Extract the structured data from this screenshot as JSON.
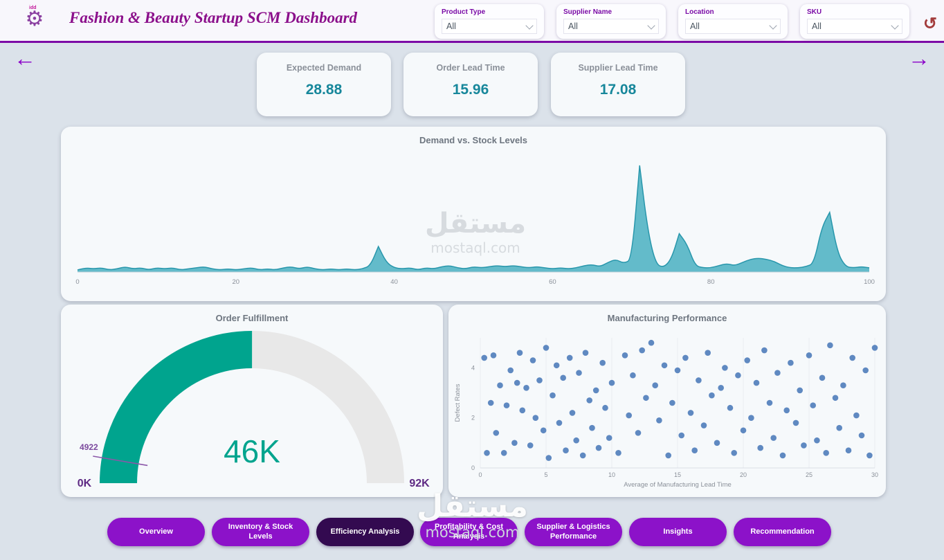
{
  "header": {
    "title": "Fashion & Beauty Startup SCM Dashboard",
    "logo_text": "idd",
    "filters": [
      {
        "label": "Product Type",
        "value": "All"
      },
      {
        "label": "Supplier Name",
        "value": "All"
      },
      {
        "label": "Location",
        "value": "All"
      },
      {
        "label": "SKU",
        "value": "All"
      }
    ]
  },
  "icons": {
    "undo": "↺",
    "prev": "←",
    "next": "→",
    "gear": "⚙"
  },
  "kpis": [
    {
      "label": "Expected Demand",
      "value": "28.88"
    },
    {
      "label": "Order Lead Time",
      "value": "15.96"
    },
    {
      "label": "Supplier Lead Time",
      "value": "17.08"
    }
  ],
  "chart_data": [
    {
      "type": "area",
      "title": "Demand vs. Stock Levels",
      "x_range": [
        0,
        100
      ],
      "y_range": [
        0,
        100
      ],
      "x_ticks": [
        0,
        20,
        40,
        60,
        80,
        100
      ],
      "x_step": 1,
      "values": [
        2,
        4,
        3,
        4,
        2,
        3,
        5,
        3,
        4,
        2,
        4,
        3,
        4,
        2,
        3,
        4,
        5,
        3,
        2,
        3,
        2,
        3,
        4,
        2,
        3,
        2,
        4,
        5,
        3,
        5,
        3,
        2,
        3,
        2,
        3,
        2,
        3,
        6,
        24,
        9,
        4,
        3,
        4,
        2,
        4,
        3,
        5,
        6,
        4,
        3,
        5,
        4,
        5,
        6,
        5,
        6,
        5,
        4,
        5,
        4,
        3,
        4,
        3,
        4,
        6,
        7,
        5,
        9,
        12,
        8,
        12,
        100,
        40,
        8,
        4,
        12,
        36,
        26,
        6,
        4,
        4,
        6,
        8,
        6,
        9,
        12,
        13,
        12,
        10,
        6,
        4,
        4,
        5,
        8,
        42,
        56,
        18,
        5,
        4,
        5,
        4
      ],
      "fill_color": "#4fb2c3",
      "line_color": "#2796ab",
      "grid": false
    },
    {
      "type": "gauge",
      "title": "Order Fulfillment",
      "min": 0,
      "max": 92000,
      "value": 46000,
      "target": 4922,
      "min_label": "0K",
      "max_label": "92K",
      "value_label": "46K",
      "target_label": "4922",
      "color": "#00a48e",
      "track_color": "#e8e8e8"
    },
    {
      "type": "scatter",
      "title": "Manufacturing Performance",
      "xlabel": "Average of Manufacturing Lead Time",
      "ylabel": "Defect Rates",
      "x_range": [
        0,
        30
      ],
      "y_range": [
        0,
        5.2
      ],
      "x_ticks": [
        0,
        5,
        10,
        15,
        20,
        25,
        30
      ],
      "y_ticks": [
        0,
        2,
        4
      ],
      "point_color": "#4a79b8",
      "grid": true,
      "points": [
        [
          0.3,
          4.4
        ],
        [
          0.5,
          0.6
        ],
        [
          0.8,
          2.6
        ],
        [
          1,
          4.5
        ],
        [
          1.2,
          1.4
        ],
        [
          1.5,
          3.3
        ],
        [
          1.8,
          0.6
        ],
        [
          2,
          2.5
        ],
        [
          2.3,
          3.9
        ],
        [
          2.6,
          1
        ],
        [
          2.8,
          3.4
        ],
        [
          3,
          4.6
        ],
        [
          3.2,
          2.3
        ],
        [
          3.5,
          3.2
        ],
        [
          3.8,
          0.9
        ],
        [
          4,
          4.3
        ],
        [
          4.2,
          2
        ],
        [
          4.5,
          3.5
        ],
        [
          4.8,
          1.5
        ],
        [
          5,
          4.8
        ],
        [
          5.2,
          0.4
        ],
        [
          5.5,
          2.9
        ],
        [
          5.8,
          4.1
        ],
        [
          6,
          1.8
        ],
        [
          6.3,
          3.6
        ],
        [
          6.5,
          0.7
        ],
        [
          6.8,
          4.4
        ],
        [
          7,
          2.2
        ],
        [
          7.3,
          1.1
        ],
        [
          7.5,
          3.8
        ],
        [
          7.8,
          0.5
        ],
        [
          8,
          4.6
        ],
        [
          8.3,
          2.7
        ],
        [
          8.5,
          1.6
        ],
        [
          8.8,
          3.1
        ],
        [
          9,
          0.8
        ],
        [
          9.3,
          4.2
        ],
        [
          9.5,
          2.4
        ],
        [
          9.8,
          1.2
        ],
        [
          10,
          3.4
        ],
        [
          10.5,
          0.6
        ],
        [
          11,
          4.5
        ],
        [
          11.3,
          2.1
        ],
        [
          11.6,
          3.7
        ],
        [
          12,
          1.4
        ],
        [
          12.3,
          4.7
        ],
        [
          12.6,
          2.8
        ],
        [
          13,
          5
        ],
        [
          13.3,
          3.3
        ],
        [
          13.6,
          1.9
        ],
        [
          14,
          4.1
        ],
        [
          14.3,
          0.5
        ],
        [
          14.6,
          2.6
        ],
        [
          15,
          3.9
        ],
        [
          15.3,
          1.3
        ],
        [
          15.6,
          4.4
        ],
        [
          16,
          2.2
        ],
        [
          16.3,
          0.7
        ],
        [
          16.6,
          3.5
        ],
        [
          17,
          1.7
        ],
        [
          17.3,
          4.6
        ],
        [
          17.6,
          2.9
        ],
        [
          18,
          1
        ],
        [
          18.3,
          3.2
        ],
        [
          18.6,
          4
        ],
        [
          19,
          2.4
        ],
        [
          19.3,
          0.6
        ],
        [
          19.6,
          3.7
        ],
        [
          20,
          1.5
        ],
        [
          20.3,
          4.3
        ],
        [
          20.6,
          2
        ],
        [
          21,
          3.4
        ],
        [
          21.3,
          0.8
        ],
        [
          21.6,
          4.7
        ],
        [
          22,
          2.6
        ],
        [
          22.3,
          1.2
        ],
        [
          22.6,
          3.8
        ],
        [
          23,
          0.5
        ],
        [
          23.3,
          2.3
        ],
        [
          23.6,
          4.2
        ],
        [
          24,
          1.8
        ],
        [
          24.3,
          3.1
        ],
        [
          24.6,
          0.9
        ],
        [
          25,
          4.5
        ],
        [
          25.3,
          2.5
        ],
        [
          25.6,
          1.1
        ],
        [
          26,
          3.6
        ],
        [
          26.3,
          0.6
        ],
        [
          26.6,
          4.9
        ],
        [
          27,
          2.8
        ],
        [
          27.3,
          1.6
        ],
        [
          27.6,
          3.3
        ],
        [
          28,
          0.7
        ],
        [
          28.3,
          4.4
        ],
        [
          28.6,
          2.1
        ],
        [
          29,
          1.3
        ],
        [
          29.3,
          3.9
        ],
        [
          29.6,
          0.5
        ],
        [
          30,
          4.8
        ]
      ]
    }
  ],
  "nav": {
    "active_index": 2,
    "buttons": [
      {
        "label": "Overview"
      },
      {
        "label": "Inventory & Stock Levels"
      },
      {
        "label": "Efficiency Analysis"
      },
      {
        "label": "Profitability & Cost Analysis"
      },
      {
        "label": "Supplier & Logistics Performance"
      },
      {
        "label": "Insights"
      },
      {
        "label": "Recommendation"
      }
    ]
  },
  "watermark": {
    "text": "مستقل",
    "subtext": "mostaql.com"
  }
}
